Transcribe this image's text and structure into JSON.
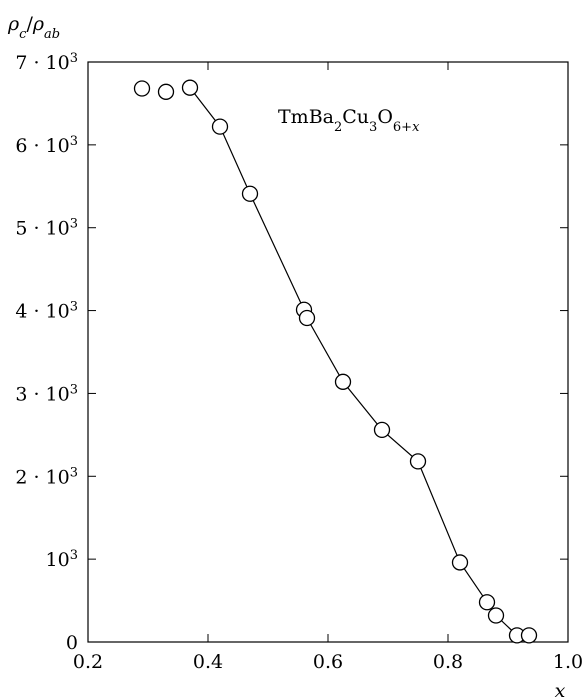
{
  "chart_data": {
    "type": "scatter",
    "title": "",
    "xlabel": "x",
    "ylabel": "ρc/ρab",
    "xlim": [
      0.2,
      1.0
    ],
    "ylim": [
      0,
      7000
    ],
    "xticks": [
      0.2,
      0.4,
      0.6,
      0.8,
      1.0
    ],
    "xtick_labels": [
      "0.2",
      "0.4",
      "0.6",
      "0.8",
      "1.0"
    ],
    "yticks": [
      0,
      1000,
      2000,
      3000,
      4000,
      5000,
      6000,
      7000
    ],
    "ytick_labels": [
      "0",
      "10^3",
      "2 · 10^3",
      "3 · 10^3",
      "4 · 10^3",
      "5 · 10^3",
      "6 · 10^3",
      "7 · 10^3"
    ],
    "annotation": "TmBa2Cu3O6+x",
    "grid": false,
    "series": [
      {
        "marker": "open-circle",
        "points": [
          {
            "x": 0.29,
            "y": 6680
          },
          {
            "x": 0.33,
            "y": 6640
          },
          {
            "x": 0.37,
            "y": 6690
          },
          {
            "x": 0.42,
            "y": 6220
          },
          {
            "x": 0.47,
            "y": 5410
          },
          {
            "x": 0.56,
            "y": 4010
          },
          {
            "x": 0.565,
            "y": 3910
          },
          {
            "x": 0.625,
            "y": 3140
          },
          {
            "x": 0.69,
            "y": 2560
          },
          {
            "x": 0.75,
            "y": 2180
          },
          {
            "x": 0.82,
            "y": 960
          },
          {
            "x": 0.865,
            "y": 480
          },
          {
            "x": 0.88,
            "y": 320
          },
          {
            "x": 0.915,
            "y": 80
          },
          {
            "x": 0.935,
            "y": 80
          }
        ]
      }
    ],
    "line": {
      "points": [
        {
          "x": 0.37,
          "y": 6690
        },
        {
          "x": 0.42,
          "y": 6220
        },
        {
          "x": 0.47,
          "y": 5410
        },
        {
          "x": 0.56,
          "y": 4010
        },
        {
          "x": 0.565,
          "y": 3910
        },
        {
          "x": 0.625,
          "y": 3140
        },
        {
          "x": 0.69,
          "y": 2560
        },
        {
          "x": 0.75,
          "y": 2180
        },
        {
          "x": 0.82,
          "y": 960
        },
        {
          "x": 0.865,
          "y": 480
        },
        {
          "x": 0.88,
          "y": 320
        },
        {
          "x": 0.915,
          "y": 80
        },
        {
          "x": 0.935,
          "y": 80
        }
      ]
    }
  }
}
